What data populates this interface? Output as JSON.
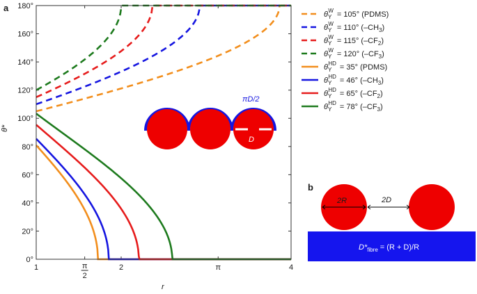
{
  "panel_a_label": "a",
  "panel_b_label": "b",
  "chart_data": {
    "type": "line",
    "title": "",
    "xlabel": "r",
    "ylabel": "θ*",
    "xlim": [
      1,
      4
    ],
    "ylim": [
      0,
      180
    ],
    "y_ticks": [
      0,
      20,
      40,
      60,
      80,
      100,
      120,
      140,
      160,
      180
    ],
    "y_tick_labels": [
      "0°",
      "20°",
      "40°",
      "60°",
      "80°",
      "100°",
      "120°",
      "140°",
      "160°",
      "180°"
    ],
    "x_ticks": [
      1,
      1.5708,
      2,
      3.14159,
      4
    ],
    "x_tick_labels": [
      {
        "text": "1",
        "kind": "plain"
      },
      {
        "text": "π",
        "denom": "2",
        "kind": "fraction"
      },
      {
        "text": "2",
        "kind": "plain"
      },
      {
        "text": "π",
        "kind": "plain"
      },
      {
        "text": "4",
        "kind": "plain"
      }
    ],
    "series": [
      {
        "name": "θY W = 105° (PDMS)",
        "sym_sup": "W",
        "value": "105°",
        "material": "(PDMS)",
        "material_sub": "",
        "color": "#f28e1c",
        "style": "dashed",
        "theta_y_deg": 105,
        "model": "wenzel"
      },
      {
        "name": "θY W = 110° (–CH3)",
        "sym_sup": "W",
        "value": "110°",
        "material": "(–CH",
        "material_sub": "3",
        "color": "#1515e0",
        "style": "dashed",
        "theta_y_deg": 110,
        "model": "wenzel"
      },
      {
        "name": "θY W = 115° (–CF2)",
        "sym_sup": "W",
        "value": "115°",
        "material": "(–CF",
        "material_sub": "2",
        "color": "#e61b1b",
        "style": "dashed",
        "theta_y_deg": 115,
        "model": "wenzel"
      },
      {
        "name": "θY W = 120° (–CF3)",
        "sym_sup": "W",
        "value": "120°",
        "material": "(–CF",
        "material_sub": "3",
        "color": "#1d7a1d",
        "style": "dashed",
        "theta_y_deg": 120,
        "model": "wenzel"
      },
      {
        "name": "θY HD = 35° (PDMS)",
        "sym_sup": "HD",
        "value": "35°",
        "material": "(PDMS)",
        "material_sub": "",
        "color": "#f28e1c",
        "style": "solid",
        "theta_y_deg": 35,
        "model": "hd"
      },
      {
        "name": "θY HD = 46° (–CH3)",
        "sym_sup": "HD",
        "value": "46°",
        "material": "(–CH",
        "material_sub": "3",
        "color": "#1515e0",
        "style": "solid",
        "theta_y_deg": 46,
        "model": "hd"
      },
      {
        "name": "θY HD = 65° (–CF2)",
        "sym_sup": "HD",
        "value": "65°",
        "material": "(–CF",
        "material_sub": "2",
        "color": "#e61b1b",
        "style": "solid",
        "theta_y_deg": 65,
        "model": "hd"
      },
      {
        "name": "θY HD = 78° (–CF3)",
        "sym_sup": "HD",
        "value": "78°",
        "material": "(–CF",
        "material_sub": "3",
        "color": "#1d7a1d",
        "style": "solid",
        "theta_y_deg": 78,
        "model": "hd"
      }
    ],
    "inset_a": {
      "arc_label": "πD/2",
      "gap_label": "D",
      "fiber_color": "#ee0000",
      "coating_color": "#1515e0"
    },
    "inset_b": {
      "radius_label": "2R",
      "gap_label": "2D",
      "formula": "= (R + D)/R",
      "formula_symbol": "D*",
      "formula_sub": "fibre",
      "fiber_color": "#ee0000",
      "substrate_color": "#1515ee"
    }
  }
}
